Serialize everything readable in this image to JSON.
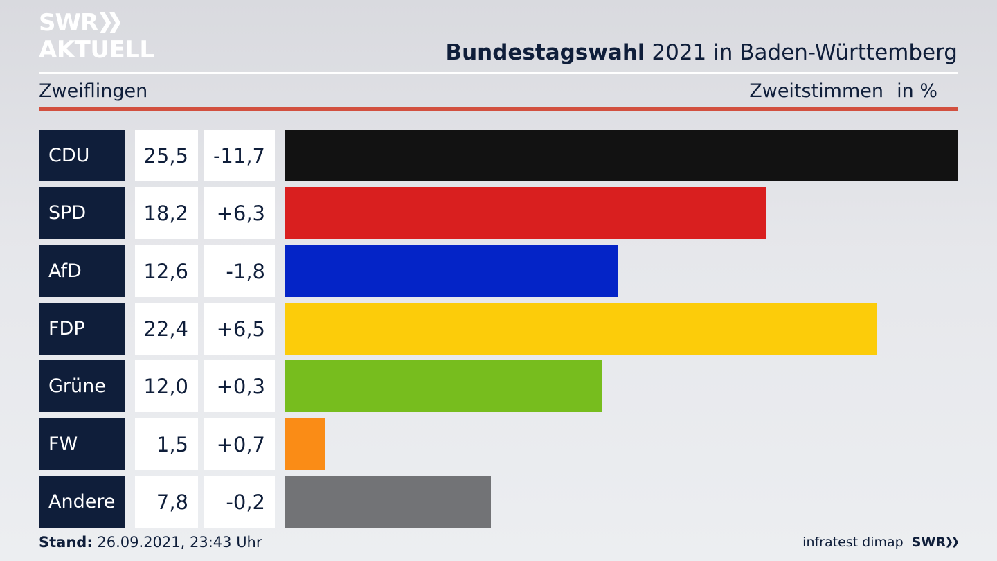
{
  "logo": {
    "line1": "SWR",
    "line2": "AKTUELL"
  },
  "header": {
    "title_bold": "Bundestagswahl",
    "title_rest": "2021 in Baden-Württemberg",
    "region": "Zweiflingen",
    "measure": "Zweitstimmen",
    "unit": "in %"
  },
  "chart_data": {
    "type": "bar",
    "orientation": "horizontal",
    "categories": [
      "CDU",
      "SPD",
      "AfD",
      "FDP",
      "Grüne",
      "FW",
      "Andere"
    ],
    "values": [
      25.5,
      18.2,
      12.6,
      22.4,
      12.0,
      1.5,
      7.8
    ],
    "value_labels": [
      "25,5",
      "18,2",
      "12,6",
      "22,4",
      "12,0",
      "1,5",
      "7,8"
    ],
    "change_labels": [
      "-11,7",
      "+6,3",
      "-1,8",
      "+6,5",
      "+0,3",
      "+0,7",
      "-0,2"
    ],
    "colors": [
      "#121212",
      "#d91f1f",
      "#0424c7",
      "#fccc0a",
      "#77bd1e",
      "#fa8c16",
      "#727376"
    ],
    "xlim": [
      0,
      25.5
    ]
  },
  "footer": {
    "stand_label": "Stand:",
    "stand_value": "26.09.2021, 23:43 Uhr",
    "source": "infratest dimap",
    "brand": "SWR"
  }
}
